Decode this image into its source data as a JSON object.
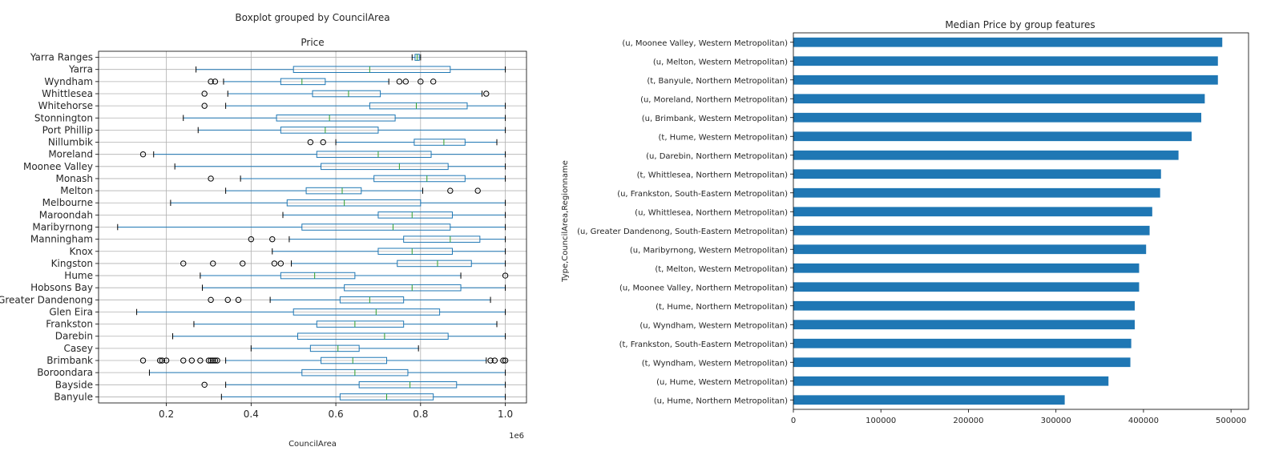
{
  "chart_data": [
    {
      "type": "boxplot",
      "suptitle": "Boxplot grouped by CouncilArea",
      "title": "Price",
      "xlabel": "CouncilArea",
      "offset_label": "1e6",
      "xlim": [
        0.04,
        1.05
      ],
      "xticks": [
        0.2,
        0.4,
        0.6,
        0.8,
        1.0
      ],
      "xtick_labels": [
        "0.2",
        "0.4",
        "0.6",
        "0.8",
        "1.0"
      ],
      "grid": true,
      "box_color": "#1f77b4",
      "median_color": "#2ca02c",
      "categories": [
        "Banyule",
        "Bayside",
        "Boroondara",
        "Brimbank",
        "Casey",
        "Darebin",
        "Frankston",
        "Glen Eira",
        "Greater Dandenong",
        "Hobsons Bay",
        "Hume",
        "Kingston",
        "Knox",
        "Manningham",
        "Maribyrnong",
        "Maroondah",
        "Melbourne",
        "Melton",
        "Monash",
        "Moonee Valley",
        "Moreland",
        "Nillumbik",
        "Port Phillip",
        "Stonnington",
        "Whitehorse",
        "Whittlesea",
        "Wyndham",
        "Yarra",
        "Yarra Ranges"
      ],
      "boxes": [
        {
          "whislo": 0.33,
          "q1": 0.61,
          "med": 0.72,
          "q3": 0.83,
          "whishi": 1.0,
          "fliers": []
        },
        {
          "whislo": 0.34,
          "q1": 0.655,
          "med": 0.775,
          "q3": 0.885,
          "whishi": 1.0,
          "fliers": [
            0.29
          ]
        },
        {
          "whislo": 0.16,
          "q1": 0.52,
          "med": 0.645,
          "q3": 0.77,
          "whishi": 1.0,
          "fliers": []
        },
        {
          "whislo": 0.34,
          "q1": 0.565,
          "med": 0.64,
          "q3": 0.72,
          "whishi": 0.955,
          "fliers": [
            0.145,
            0.185,
            0.19,
            0.2,
            0.24,
            0.26,
            0.28,
            0.3,
            0.305,
            0.31,
            0.315,
            0.32,
            0.965,
            0.975,
            0.995,
            1.0
          ]
        },
        {
          "whislo": 0.4,
          "q1": 0.54,
          "med": 0.605,
          "q3": 0.655,
          "whishi": 0.795,
          "fliers": []
        },
        {
          "whislo": 0.215,
          "q1": 0.51,
          "med": 0.715,
          "q3": 0.865,
          "whishi": 1.0,
          "fliers": []
        },
        {
          "whislo": 0.265,
          "q1": 0.555,
          "med": 0.645,
          "q3": 0.76,
          "whishi": 0.98,
          "fliers": []
        },
        {
          "whislo": 0.13,
          "q1": 0.5,
          "med": 0.695,
          "q3": 0.845,
          "whishi": 1.0,
          "fliers": []
        },
        {
          "whislo": 0.445,
          "q1": 0.61,
          "med": 0.68,
          "q3": 0.76,
          "whishi": 0.965,
          "fliers": [
            0.305,
            0.345,
            0.37
          ]
        },
        {
          "whislo": 0.285,
          "q1": 0.62,
          "med": 0.78,
          "q3": 0.895,
          "whishi": 1.0,
          "fliers": []
        },
        {
          "whislo": 0.28,
          "q1": 0.47,
          "med": 0.55,
          "q3": 0.645,
          "whishi": 0.895,
          "fliers": [
            1.0
          ]
        },
        {
          "whislo": 0.495,
          "q1": 0.745,
          "med": 0.84,
          "q3": 0.92,
          "whishi": 1.0,
          "fliers": [
            0.24,
            0.31,
            0.38,
            0.455,
            0.47
          ]
        },
        {
          "whislo": 0.45,
          "q1": 0.7,
          "med": 0.78,
          "q3": 0.875,
          "whishi": 1.0,
          "fliers": []
        },
        {
          "whislo": 0.49,
          "q1": 0.76,
          "med": 0.87,
          "q3": 0.94,
          "whishi": 1.0,
          "fliers": [
            0.4,
            0.45
          ]
        },
        {
          "whislo": 0.085,
          "q1": 0.52,
          "med": 0.735,
          "q3": 0.87,
          "whishi": 1.0,
          "fliers": []
        },
        {
          "whislo": 0.475,
          "q1": 0.7,
          "med": 0.78,
          "q3": 0.875,
          "whishi": 1.0,
          "fliers": []
        },
        {
          "whislo": 0.21,
          "q1": 0.485,
          "med": 0.62,
          "q3": 0.8,
          "whishi": 1.0,
          "fliers": []
        },
        {
          "whislo": 0.34,
          "q1": 0.53,
          "med": 0.615,
          "q3": 0.66,
          "whishi": 0.805,
          "fliers": [
            0.87,
            0.935
          ]
        },
        {
          "whislo": 0.375,
          "q1": 0.69,
          "med": 0.815,
          "q3": 0.905,
          "whishi": 1.0,
          "fliers": [
            0.305
          ]
        },
        {
          "whislo": 0.22,
          "q1": 0.565,
          "med": 0.75,
          "q3": 0.865,
          "whishi": 1.0,
          "fliers": []
        },
        {
          "whislo": 0.17,
          "q1": 0.555,
          "med": 0.7,
          "q3": 0.825,
          "whishi": 1.0,
          "fliers": [
            0.145
          ]
        },
        {
          "whislo": 0.6,
          "q1": 0.785,
          "med": 0.855,
          "q3": 0.905,
          "whishi": 0.98,
          "fliers": [
            0.54,
            0.57
          ]
        },
        {
          "whislo": 0.275,
          "q1": 0.47,
          "med": 0.575,
          "q3": 0.7,
          "whishi": 1.0,
          "fliers": []
        },
        {
          "whislo": 0.24,
          "q1": 0.46,
          "med": 0.585,
          "q3": 0.74,
          "whishi": 1.0,
          "fliers": []
        },
        {
          "whislo": 0.34,
          "q1": 0.68,
          "med": 0.79,
          "q3": 0.91,
          "whishi": 1.0,
          "fliers": [
            0.29
          ]
        },
        {
          "whislo": 0.345,
          "q1": 0.545,
          "med": 0.63,
          "q3": 0.705,
          "whishi": 0.945,
          "fliers": [
            0.29,
            0.955
          ]
        },
        {
          "whislo": 0.335,
          "q1": 0.47,
          "med": 0.52,
          "q3": 0.575,
          "whishi": 0.725,
          "fliers": [
            0.305,
            0.315,
            0.75,
            0.765,
            0.8,
            0.83
          ]
        },
        {
          "whislo": 0.27,
          "q1": 0.5,
          "med": 0.68,
          "q3": 0.87,
          "whishi": 1.0,
          "fliers": []
        },
        {
          "whislo": 0.78,
          "q1": 0.787,
          "med": 0.792,
          "q3": 0.797,
          "whishi": 0.8,
          "fliers": []
        }
      ]
    },
    {
      "type": "bar",
      "orientation": "horizontal",
      "title": "Median Price by group features",
      "ylabel": "Type,CouncilArea,Regionname",
      "xlabel": "",
      "xlim": [
        0,
        520000
      ],
      "xticks": [
        0,
        100000,
        200000,
        300000,
        400000,
        500000
      ],
      "xtick_labels": [
        "0",
        "100000",
        "200000",
        "300000",
        "400000",
        "500000"
      ],
      "color": "#1f77b4",
      "categories": [
        "(u, Moonee Valley, Western Metropolitan)",
        "(u, Melton, Western Metropolitan)",
        "(t, Banyule, Northern Metropolitan)",
        "(u, Moreland, Northern Metropolitan)",
        "(u, Brimbank, Western Metropolitan)",
        "(t, Hume, Western Metropolitan)",
        "(u, Darebin, Northern Metropolitan)",
        "(t, Whittlesea, Northern Metropolitan)",
        "(u, Frankston, South-Eastern Metropolitan)",
        "(u, Whittlesea, Northern Metropolitan)",
        "(u, Greater Dandenong, South-Eastern Metropolitan)",
        "(u, Maribyrnong, Western Metropolitan)",
        "(t, Melton, Western Metropolitan)",
        "(u, Moonee Valley, Northern Metropolitan)",
        "(t, Hume, Northern Metropolitan)",
        "(u, Wyndham, Western Metropolitan)",
        "(t, Frankston, South-Eastern Metropolitan)",
        "(t, Wyndham, Western Metropolitan)",
        "(u, Hume, Western Metropolitan)",
        "(u, Hume, Northern Metropolitan)"
      ],
      "values": [
        490000,
        485000,
        485000,
        470000,
        466000,
        455000,
        440000,
        420000,
        419000,
        410000,
        407000,
        403000,
        395000,
        395000,
        390000,
        390000,
        386000,
        385000,
        360000,
        310000
      ]
    }
  ]
}
